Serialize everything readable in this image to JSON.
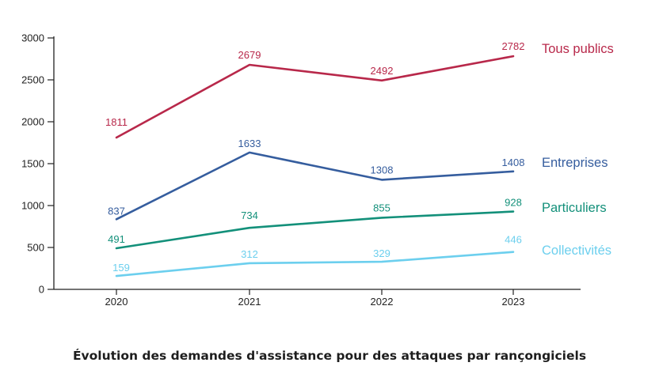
{
  "chart_data": {
    "type": "line",
    "title": "Évolution des demandes d'assistance pour des attaques par rançongiciels",
    "x": [
      "2020",
      "2021",
      "2022",
      "2023"
    ],
    "y_ticks": [
      "0",
      "500",
      "1000",
      "1500",
      "2000",
      "2500",
      "3000"
    ],
    "ylim": [
      0,
      3000
    ],
    "grid": false,
    "legend_position": "right, labels at line ends",
    "series": [
      {
        "name": "Tous publics",
        "values": [
          1811,
          2679,
          2492,
          2782
        ],
        "labels": [
          "1811",
          "2679",
          "2492",
          "2782"
        ],
        "color": "#b8284a"
      },
      {
        "name": "Entreprises",
        "values": [
          837,
          1633,
          1308,
          1408
        ],
        "labels": [
          "837",
          "1633",
          "1308",
          "1408"
        ],
        "color": "#355d9e"
      },
      {
        "name": "Particuliers",
        "values": [
          491,
          734,
          855,
          928
        ],
        "labels": [
          "491",
          "734",
          "855",
          "928"
        ],
        "color": "#13907a"
      },
      {
        "name": "Collectivités",
        "values": [
          159,
          312,
          329,
          446
        ],
        "labels": [
          "159",
          "312",
          "329",
          "446"
        ],
        "color": "#6ccfee"
      }
    ]
  }
}
